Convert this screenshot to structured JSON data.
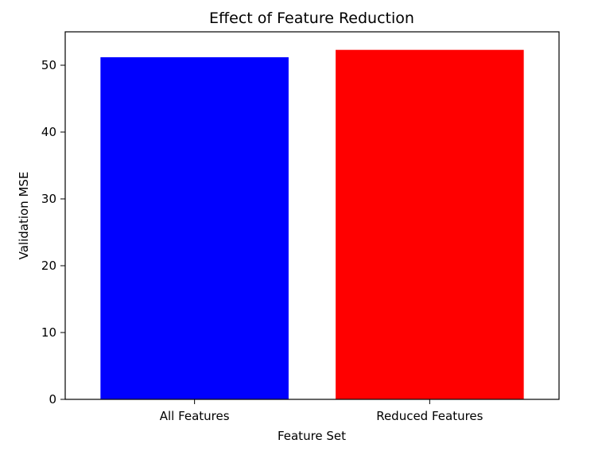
{
  "chart_data": {
    "type": "bar",
    "title": "Effect of Feature Reduction",
    "xlabel": "Feature Set",
    "ylabel": "Validation MSE",
    "categories": [
      "All Features",
      "Reduced Features"
    ],
    "values": [
      51.2,
      52.3
    ],
    "bar_colors": [
      "#0000ff",
      "#ff0000"
    ],
    "ylim": [
      0,
      55
    ],
    "yticks": [
      0,
      10,
      20,
      30,
      40,
      50
    ],
    "grid": false,
    "legend": "none"
  }
}
